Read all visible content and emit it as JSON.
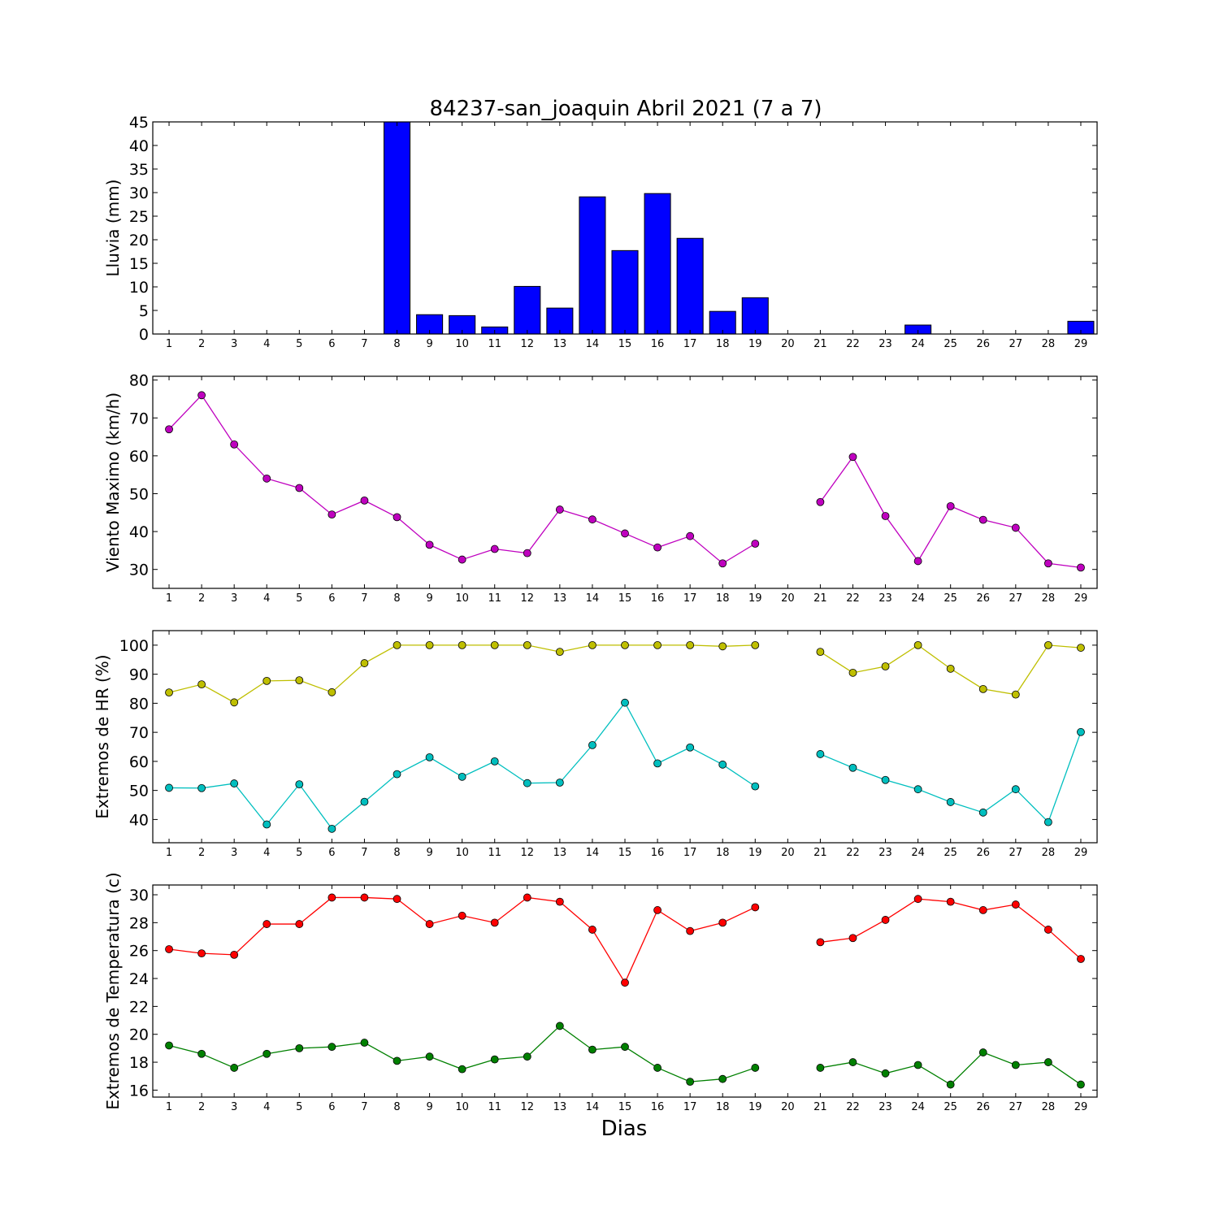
{
  "title": "84237-san_joaquin Abril 2021  (7 a 7)",
  "xlabel": "Dias",
  "chart_data": [
    {
      "type": "bar",
      "ylabel": "Lluvia (mm)",
      "ylim": [
        0,
        45
      ],
      "yticks": [
        0,
        5,
        10,
        15,
        20,
        25,
        30,
        35,
        40,
        45
      ],
      "x": [
        1,
        2,
        3,
        4,
        5,
        6,
        7,
        8,
        9,
        10,
        11,
        12,
        13,
        14,
        15,
        16,
        17,
        18,
        19,
        20,
        21,
        22,
        23,
        24,
        25,
        26,
        27,
        28,
        29
      ],
      "xlim": [
        0.5,
        29.5
      ],
      "series": [
        {
          "color": "#0000ff",
          "values": [
            0,
            0,
            0,
            0,
            0,
            0,
            0,
            45,
            4.1,
            3.9,
            1.5,
            10.1,
            5.5,
            29.1,
            17.7,
            29.8,
            20.3,
            4.8,
            7.7,
            0,
            0,
            0,
            0,
            1.9,
            0,
            0,
            0,
            0,
            2.7
          ]
        }
      ]
    },
    {
      "type": "line",
      "ylabel": "Viento Maximo (km/h)",
      "ylim": [
        25,
        81
      ],
      "yticks": [
        30,
        40,
        50,
        60,
        70,
        80
      ],
      "x": [
        1,
        2,
        3,
        4,
        5,
        6,
        7,
        8,
        9,
        10,
        11,
        12,
        13,
        14,
        15,
        16,
        17,
        18,
        19,
        20,
        21,
        22,
        23,
        24,
        25,
        26,
        27,
        28,
        29
      ],
      "xlim": [
        0.5,
        29.5
      ],
      "series": [
        {
          "color": "#bf00bf",
          "values": [
            67,
            76,
            63,
            54,
            51.5,
            44.5,
            48.2,
            43.8,
            36.5,
            32.6,
            35.4,
            34.3,
            45.8,
            43.2,
            39.5,
            35.8,
            38.8,
            31.6,
            36.8,
            null,
            47.8,
            59.7,
            44.1,
            32.2,
            46.7,
            43.1,
            41,
            31.6,
            30.5
          ]
        }
      ]
    },
    {
      "type": "line",
      "ylabel": "Extremos de HR (%)",
      "ylim": [
        32,
        105
      ],
      "yticks": [
        40,
        50,
        60,
        70,
        80,
        90,
        100
      ],
      "x": [
        1,
        2,
        3,
        4,
        5,
        6,
        7,
        8,
        9,
        10,
        11,
        12,
        13,
        14,
        15,
        16,
        17,
        18,
        19,
        20,
        21,
        22,
        23,
        24,
        25,
        26,
        27,
        28,
        29
      ],
      "xlim": [
        0.5,
        29.5
      ],
      "series": [
        {
          "color": "#bfbf00",
          "values": [
            83.7,
            86.5,
            80.3,
            87.7,
            87.9,
            83.8,
            93.8,
            100,
            100,
            100,
            100,
            100,
            97.7,
            100,
            100,
            100,
            100,
            99.6,
            100,
            null,
            97.7,
            90.5,
            92.7,
            100,
            91.9,
            84.9,
            83,
            100,
            99.1
          ]
        },
        {
          "color": "#00bfbf",
          "values": [
            50.9,
            50.8,
            52.4,
            38.3,
            52.1,
            36.8,
            46.1,
            55.6,
            61.4,
            54.7,
            60,
            52.5,
            52.7,
            65.6,
            80.2,
            59.3,
            64.8,
            58.9,
            51.4,
            null,
            62.5,
            57.8,
            53.6,
            50.4,
            46,
            42.4,
            50.4,
            39.1,
            70.1
          ]
        }
      ]
    },
    {
      "type": "line",
      "ylabel": "Extremos de Temperatura (c)",
      "ylim": [
        15.5,
        30.7
      ],
      "yticks": [
        16,
        18,
        20,
        22,
        24,
        26,
        28,
        30
      ],
      "x": [
        1,
        2,
        3,
        4,
        5,
        6,
        7,
        8,
        9,
        10,
        11,
        12,
        13,
        14,
        15,
        16,
        17,
        18,
        19,
        20,
        21,
        22,
        23,
        24,
        25,
        26,
        27,
        28,
        29
      ],
      "xlim": [
        0.5,
        29.5
      ],
      "series": [
        {
          "color": "#ff0000",
          "values": [
            26.1,
            25.8,
            25.7,
            27.9,
            27.9,
            29.8,
            29.8,
            29.7,
            27.9,
            28.5,
            28,
            29.8,
            29.5,
            27.5,
            23.7,
            28.9,
            27.4,
            28,
            29.1,
            null,
            26.6,
            26.9,
            28.2,
            29.7,
            29.5,
            28.9,
            29.3,
            27.5,
            25.4
          ]
        },
        {
          "color": "#008000",
          "values": [
            19.2,
            18.6,
            17.6,
            18.6,
            19,
            19.1,
            19.4,
            18.1,
            18.4,
            17.5,
            18.2,
            18.4,
            20.6,
            18.9,
            19.1,
            17.6,
            16.6,
            16.8,
            17.6,
            null,
            17.6,
            18,
            17.2,
            17.8,
            16.4,
            18.7,
            17.8,
            18,
            16.4
          ]
        }
      ]
    }
  ]
}
